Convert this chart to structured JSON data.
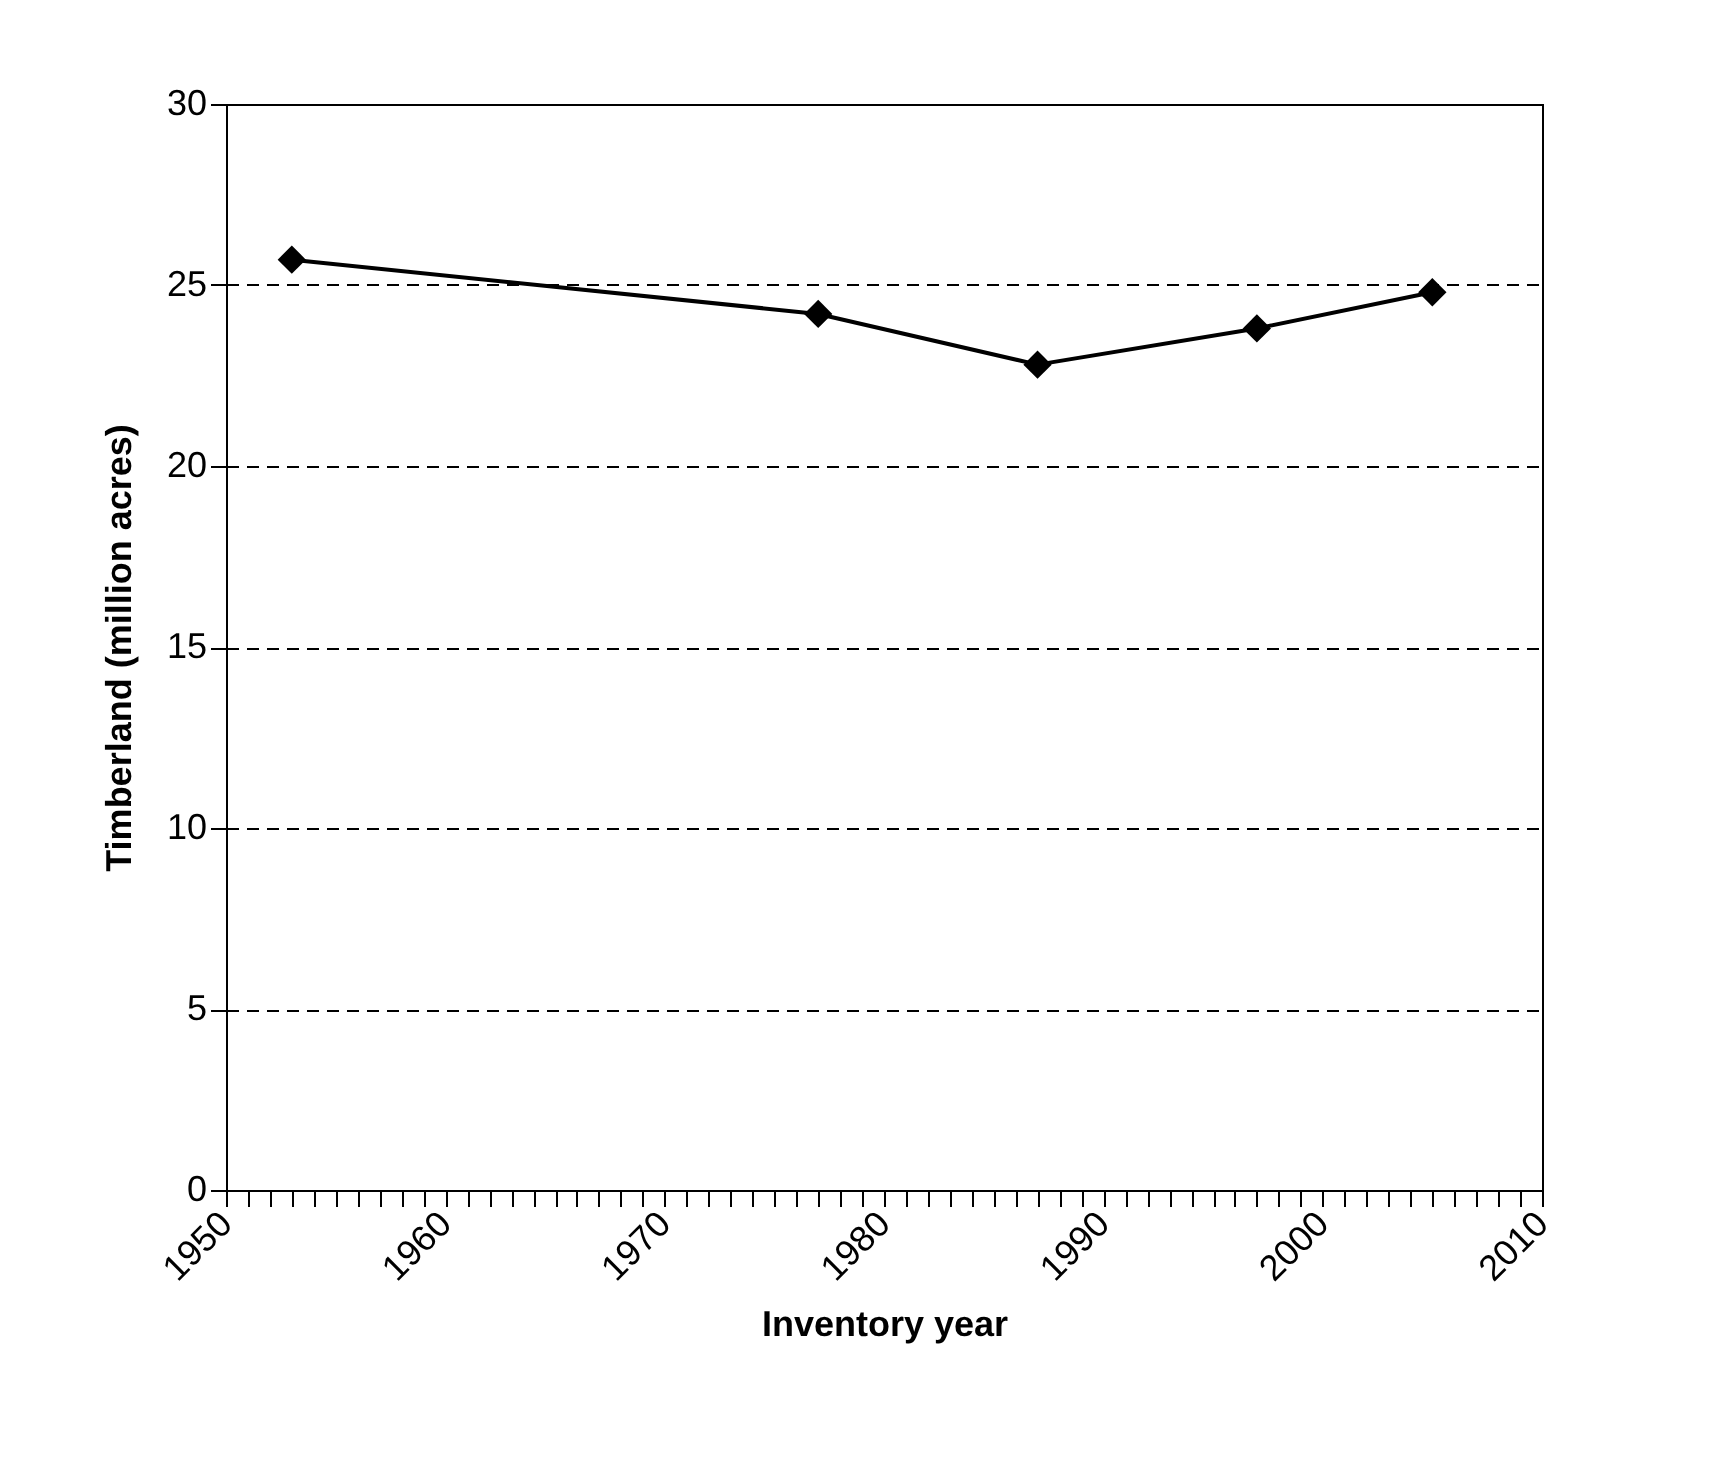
{
  "chart_data": {
    "type": "line",
    "xlabel": "Inventory year",
    "ylabel": "Timberland (million acres)",
    "x": [
      1953,
      1977,
      1987,
      1997,
      2005
    ],
    "series": [
      {
        "color": "#000000",
        "values": [
          25.7,
          24.2,
          22.8,
          23.8,
          24.8
        ]
      }
    ],
    "xlim": [
      1950,
      2010
    ],
    "xticks": [
      1950,
      {
        "value": 1951,
        "label": null
      },
      {
        "value": 1952,
        "label": null
      },
      {
        "value": 1953,
        "label": null
      },
      {
        "value": 1954,
        "label": null
      },
      {
        "value": 1955,
        "label": null
      },
      {
        "value": 1956,
        "label": null
      },
      {
        "value": 1957,
        "label": null
      },
      {
        "value": 1958,
        "label": null
      },
      {
        "value": 1959,
        "label": null
      },
      1960,
      {
        "value": 1961,
        "label": null
      },
      {
        "value": 1962,
        "label": null
      },
      {
        "value": 1963,
        "label": null
      },
      {
        "value": 1964,
        "label": null
      },
      {
        "value": 1965,
        "label": null
      },
      {
        "value": 1966,
        "label": null
      },
      {
        "value": 1967,
        "label": null
      },
      {
        "value": 1968,
        "label": null
      },
      {
        "value": 1969,
        "label": null
      },
      1970,
      {
        "value": 1971,
        "label": null
      },
      {
        "value": 1972,
        "label": null
      },
      {
        "value": 1973,
        "label": null
      },
      {
        "value": 1974,
        "label": null
      },
      {
        "value": 1975,
        "label": null
      },
      {
        "value": 1976,
        "label": null
      },
      {
        "value": 1977,
        "label": null
      },
      {
        "value": 1978,
        "label": null
      },
      {
        "value": 1979,
        "label": null
      },
      1980,
      {
        "value": 1981,
        "label": null
      },
      {
        "value": 1982,
        "label": null
      },
      {
        "value": 1983,
        "label": null
      },
      {
        "value": 1984,
        "label": null
      },
      {
        "value": 1985,
        "label": null
      },
      {
        "value": 1986,
        "label": null
      },
      {
        "value": 1987,
        "label": null
      },
      {
        "value": 1988,
        "label": null
      },
      {
        "value": 1989,
        "label": null
      },
      1990,
      {
        "value": 1991,
        "label": null
      },
      {
        "value": 1992,
        "label": null
      },
      {
        "value": 1993,
        "label": null
      },
      {
        "value": 1994,
        "label": null
      },
      {
        "value": 1995,
        "label": null
      },
      {
        "value": 1996,
        "label": null
      },
      {
        "value": 1997,
        "label": null
      },
      {
        "value": 1998,
        "label": null
      },
      {
        "value": 1999,
        "label": null
      },
      2000,
      {
        "value": 2001,
        "label": null
      },
      {
        "value": 2002,
        "label": null
      },
      {
        "value": 2003,
        "label": null
      },
      {
        "value": 2004,
        "label": null
      },
      {
        "value": 2005,
        "label": null
      },
      {
        "value": 2006,
        "label": null
      },
      {
        "value": 2007,
        "label": null
      },
      {
        "value": 2008,
        "label": null
      },
      {
        "value": 2009,
        "label": null
      },
      2010
    ],
    "ylim": [
      0,
      30
    ],
    "yticks": [
      0,
      5,
      10,
      15,
      20,
      25,
      30
    ],
    "grid": "y",
    "marker": "diamond",
    "line_style": "solid"
  }
}
